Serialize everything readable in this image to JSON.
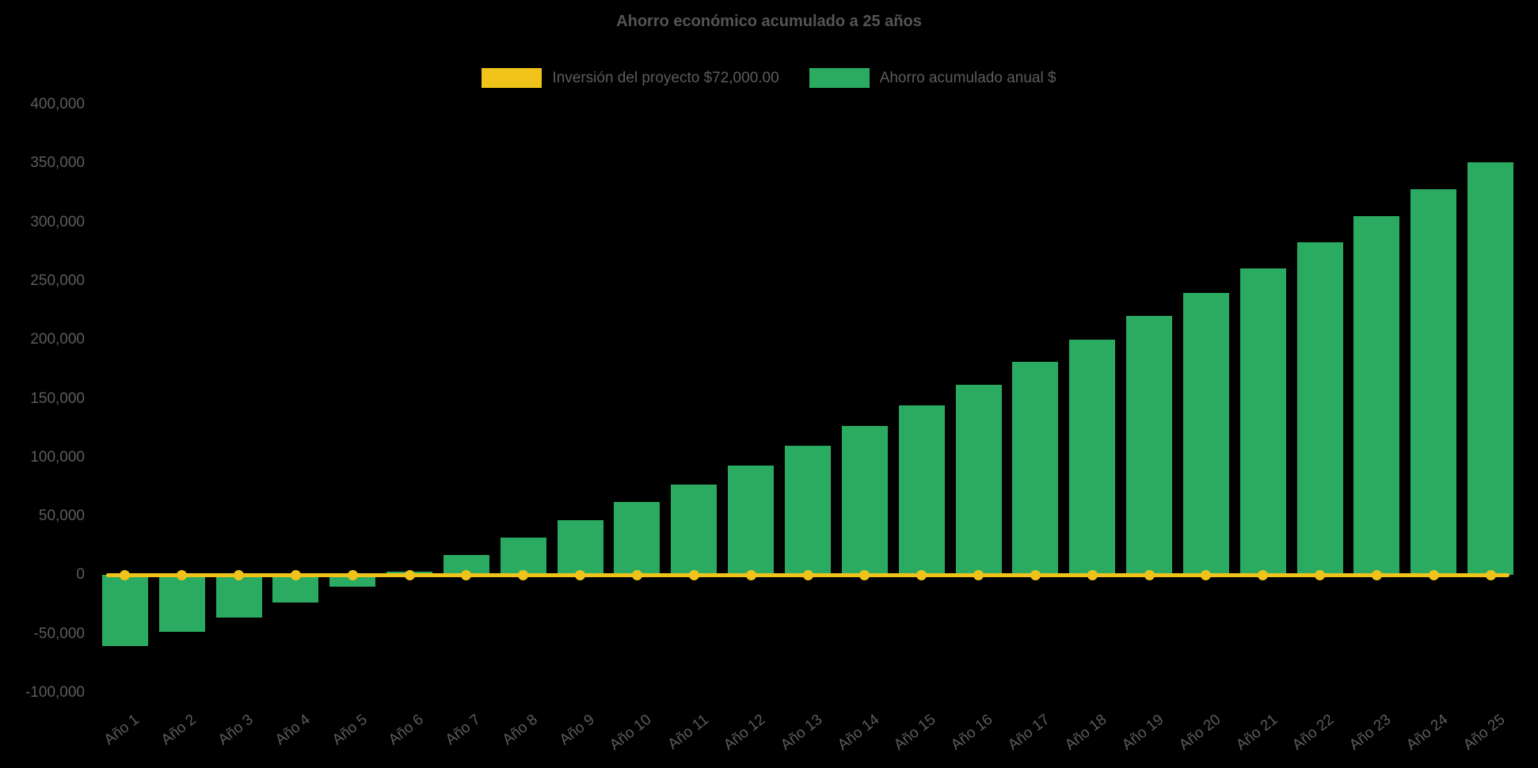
{
  "page": {
    "background": "#000000"
  },
  "chart_data": {
    "type": "bar",
    "title": "Ahorro económico acumulado a 25 años",
    "categories": [
      "Año 1",
      "Año 2",
      "Año 3",
      "Año 4",
      "Año 5",
      "Año 6",
      "Año 7",
      "Año 8",
      "Año 9",
      "Año 10",
      "Año 11",
      "Año 12",
      "Año 13",
      "Año 14",
      "Año 15",
      "Año 16",
      "Año 17",
      "Año 18",
      "Año 19",
      "Año 20",
      "Año 21",
      "Año 22",
      "Año 23",
      "Año 24",
      "Año 25"
    ],
    "series": [
      {
        "name": "Inversión del proyecto $72,000.00",
        "type": "line",
        "color": "#efc319",
        "values": [
          0,
          0,
          0,
          0,
          0,
          0,
          0,
          0,
          0,
          0,
          0,
          0,
          0,
          0,
          0,
          0,
          0,
          0,
          0,
          0,
          0,
          0,
          0,
          0,
          0
        ]
      },
      {
        "name": "Ahorro acumulado anual $",
        "type": "bar",
        "color": "#2bab61",
        "values": [
          -60000,
          -48000,
          -36000,
          -23000,
          -10000,
          3000,
          17000,
          32000,
          47000,
          62000,
          77000,
          93000,
          110000,
          127000,
          144000,
          162000,
          181000,
          200000,
          220000,
          240000,
          261000,
          283000,
          305000,
          328000,
          351000
        ]
      }
    ],
    "ylim": [
      -100000,
      400000
    ],
    "ytick_step": 50000,
    "ytick_labels": [
      "400,000",
      "350,000",
      "300,000",
      "250,000",
      "200,000",
      "150,000",
      "100,000",
      "50,000",
      "0",
      "-50,000",
      "-100,000"
    ],
    "xlabel": "",
    "ylabel": "",
    "grid": false,
    "legend_position": "top-center",
    "background": "#000000",
    "text_color": "#5c5c5c"
  }
}
